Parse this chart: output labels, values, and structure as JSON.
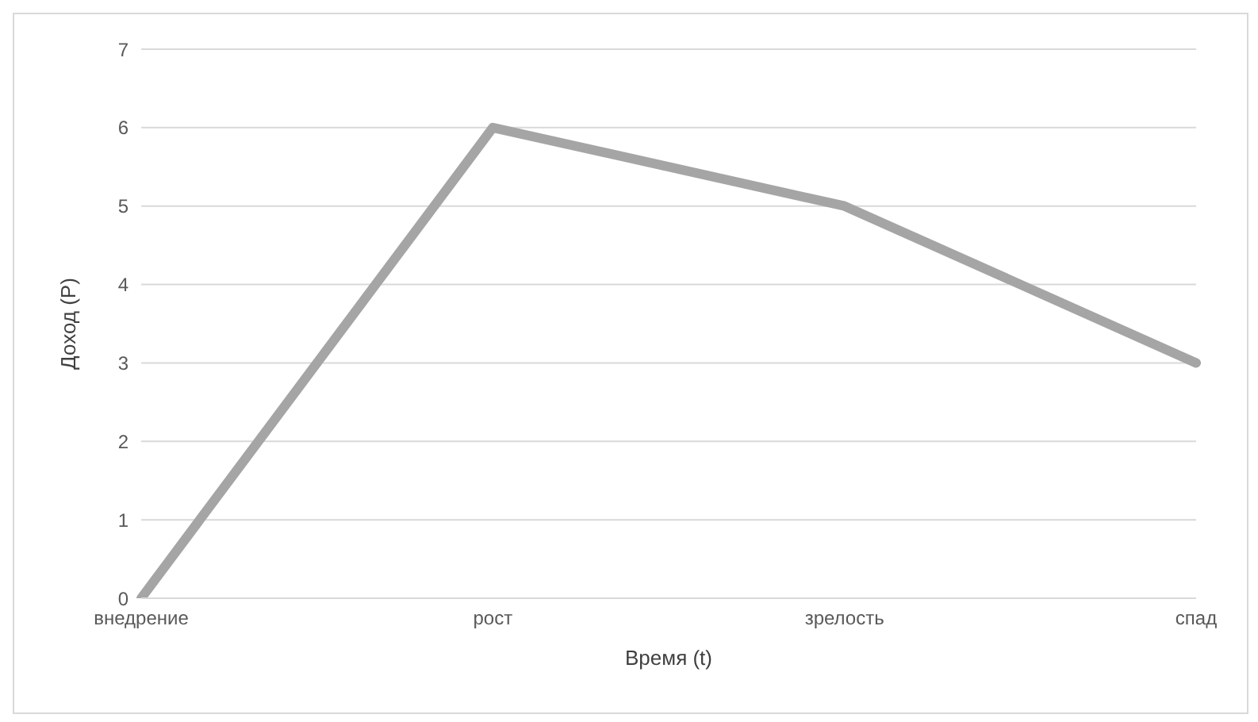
{
  "chart_data": {
    "type": "line",
    "xlabel": "Время (t)",
    "ylabel": "Доход (Р)",
    "categories": [
      "внедрение",
      "рост",
      "зрелость",
      "спад"
    ],
    "series": [
      {
        "color": "#a5a5a5",
        "values": [
          0,
          6,
          5,
          3
        ]
      }
    ],
    "ylim": [
      0,
      7
    ],
    "yticks": [
      0,
      1,
      2,
      3,
      4,
      5,
      6,
      7
    ],
    "grid": "y",
    "legend": false,
    "marker": "none",
    "line_style": "solid"
  }
}
